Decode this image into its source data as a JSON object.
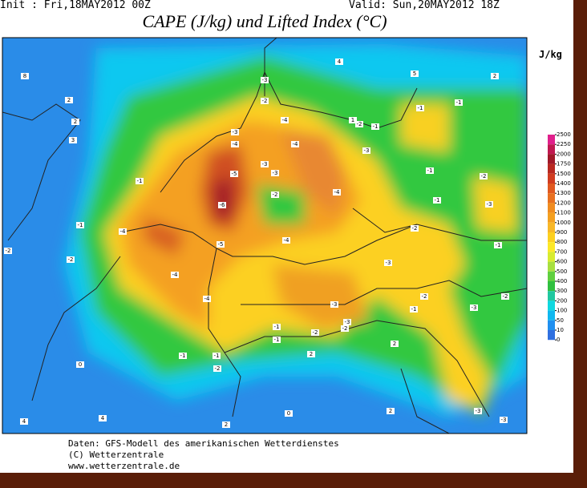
{
  "header": {
    "init": "Init : Fri,18MAY2012 00Z",
    "valid": "Valid: Sun,20MAY2012 18Z",
    "title": "CAPE (J/kg) und Lifted Index (°C)"
  },
  "colorbar": {
    "unit": "J/kg",
    "ticks": [
      2500,
      2250,
      2000,
      1750,
      1500,
      1400,
      1300,
      1200,
      1100,
      1000,
      900,
      800,
      700,
      600,
      500,
      400,
      300,
      200,
      100,
      50,
      10,
      0
    ],
    "colors": [
      "#e0208c",
      "#c01850",
      "#a01828",
      "#b82820",
      "#d03c20",
      "#e05820",
      "#e87020",
      "#f08c20",
      "#f4a020",
      "#f8b828",
      "#fcd020",
      "#fce828",
      "#d8ec30",
      "#a8e040",
      "#60d040",
      "#30c040",
      "#20c8a0",
      "#10d8e0",
      "#10b8f0",
      "#2090f0",
      "#3070e0"
    ]
  },
  "lifted_index_labels": [
    -6,
    -5,
    -4,
    -3,
    -4,
    -3,
    -2,
    -4,
    -3,
    -3,
    -2,
    -4,
    -3,
    -2,
    -1,
    -1,
    -1,
    -1,
    -2,
    -1,
    -3,
    -2,
    -3,
    -1,
    -4,
    -5,
    -4,
    -4,
    -4,
    -3,
    -2,
    -1,
    -1,
    -2,
    -3,
    -1,
    -2,
    -3,
    -2,
    -1,
    -1,
    -2,
    -3,
    -3,
    -1,
    -1,
    -2,
    -2,
    2,
    2,
    3,
    8,
    4,
    5,
    2,
    2,
    2,
    4,
    4,
    2,
    0,
    2,
    1,
    0
  ],
  "footer": {
    "line1": "Daten: GFS-Modell des amerikanischen Wetterdienstes",
    "line2": "(C) Wetterzentrale",
    "line3": "www.wetterzentrale.de"
  }
}
